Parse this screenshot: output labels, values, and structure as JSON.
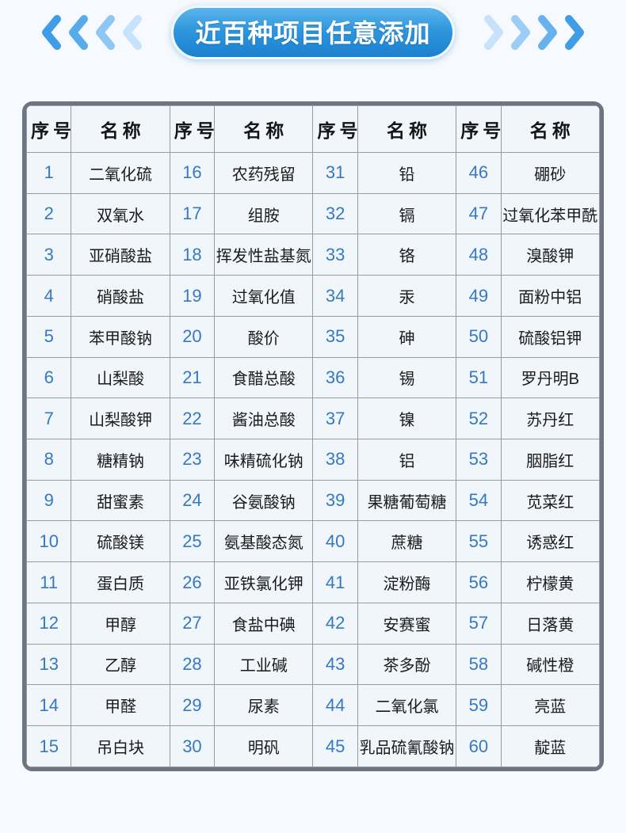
{
  "page": {
    "background": "#f6f9fd"
  },
  "header": {
    "title": "近百种项目任意添加",
    "pill_gradient_top": "#5cb5eb",
    "pill_gradient_bottom": "#1a80d1",
    "pill_text_color": "#ffffff",
    "chevron_colors_left": [
      "#3f9de8",
      "#56abec",
      "#8ec7f4",
      "#c6e3fb"
    ],
    "chevron_colors_right": [
      "#c6e3fb",
      "#9bcdf6",
      "#66b2ef",
      "#3f9de8"
    ]
  },
  "table": {
    "border_color": "#6d7482",
    "grid_color": "#969ca6",
    "cell_background": "#f1f6fb",
    "number_color": "#3579c4",
    "header": {
      "no_label": "序号",
      "name_label": "名称"
    },
    "groups": [
      {
        "items": [
          {
            "no": "1",
            "name": "二氧化硫"
          },
          {
            "no": "2",
            "name": "双氧水"
          },
          {
            "no": "3",
            "name": "亚硝酸盐"
          },
          {
            "no": "4",
            "name": "硝酸盐"
          },
          {
            "no": "5",
            "name": "苯甲酸钠"
          },
          {
            "no": "6",
            "name": "山梨酸"
          },
          {
            "no": "7",
            "name": "山梨酸钾"
          },
          {
            "no": "8",
            "name": "糖精钠"
          },
          {
            "no": "9",
            "name": "甜蜜素"
          },
          {
            "no": "10",
            "name": "硫酸镁"
          },
          {
            "no": "11",
            "name": "蛋白质"
          },
          {
            "no": "12",
            "name": "甲醇"
          },
          {
            "no": "13",
            "name": "乙醇"
          },
          {
            "no": "14",
            "name": "甲醛"
          },
          {
            "no": "15",
            "name": "吊白块"
          }
        ]
      },
      {
        "items": [
          {
            "no": "16",
            "name": "农药残留"
          },
          {
            "no": "17",
            "name": "组胺"
          },
          {
            "no": "18",
            "name": "挥发性盐基氮"
          },
          {
            "no": "19",
            "name": "过氧化值"
          },
          {
            "no": "20",
            "name": "酸价"
          },
          {
            "no": "21",
            "name": "食醋总酸"
          },
          {
            "no": "22",
            "name": "酱油总酸"
          },
          {
            "no": "23",
            "name": "味精硫化钠"
          },
          {
            "no": "24",
            "name": "谷氨酸钠"
          },
          {
            "no": "25",
            "name": "氨基酸态氮"
          },
          {
            "no": "26",
            "name": "亚铁氯化钾"
          },
          {
            "no": "27",
            "name": "食盐中碘"
          },
          {
            "no": "28",
            "name": "工业碱"
          },
          {
            "no": "29",
            "name": "尿素"
          },
          {
            "no": "30",
            "name": "明矾"
          }
        ]
      },
      {
        "items": [
          {
            "no": "31",
            "name": "铅"
          },
          {
            "no": "32",
            "name": "镉"
          },
          {
            "no": "33",
            "name": "铬"
          },
          {
            "no": "34",
            "name": "汞"
          },
          {
            "no": "35",
            "name": "砷"
          },
          {
            "no": "36",
            "name": "锡"
          },
          {
            "no": "37",
            "name": "镍"
          },
          {
            "no": "38",
            "name": "铝"
          },
          {
            "no": "39",
            "name": "果糖葡萄糖"
          },
          {
            "no": "40",
            "name": "蔗糖"
          },
          {
            "no": "41",
            "name": "淀粉酶"
          },
          {
            "no": "42",
            "name": "安赛蜜"
          },
          {
            "no": "43",
            "name": "茶多酚"
          },
          {
            "no": "44",
            "name": "二氧化氯"
          },
          {
            "no": "45",
            "name": "乳品硫氰酸钠"
          }
        ]
      },
      {
        "items": [
          {
            "no": "46",
            "name": "硼砂"
          },
          {
            "no": "47",
            "name": "过氧化苯甲酰"
          },
          {
            "no": "48",
            "name": "溴酸钾"
          },
          {
            "no": "49",
            "name": "面粉中铝"
          },
          {
            "no": "50",
            "name": "硫酸铝钾"
          },
          {
            "no": "51",
            "name": "罗丹明B"
          },
          {
            "no": "52",
            "name": "苏丹红"
          },
          {
            "no": "53",
            "name": "胭脂红"
          },
          {
            "no": "54",
            "name": "苋菜红"
          },
          {
            "no": "55",
            "name": "诱惑红"
          },
          {
            "no": "56",
            "name": "柠檬黄"
          },
          {
            "no": "57",
            "name": "日落黄"
          },
          {
            "no": "58",
            "name": "碱性橙"
          },
          {
            "no": "59",
            "name": "亮蓝"
          },
          {
            "no": "60",
            "name": "靛蓝"
          }
        ]
      }
    ]
  }
}
